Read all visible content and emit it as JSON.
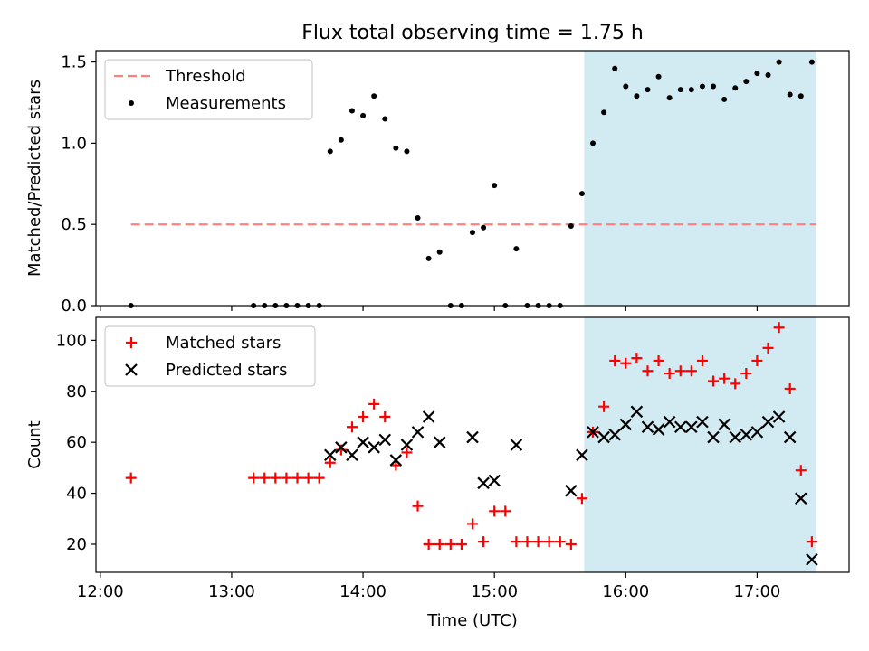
{
  "figure": {
    "title": "Flux total observing time = 1.75 h"
  },
  "chart_data": [
    {
      "type": "scatter",
      "panel": "top",
      "title": "Flux total observing time = 1.75 h",
      "xlabel": "",
      "ylabel": "Matched/Predicted stars",
      "xlim": [
        "11:58",
        "17:42"
      ],
      "ylim": [
        0,
        1.57
      ],
      "yticks": [
        0.0,
        0.5,
        1.0,
        1.5
      ],
      "ytick_labels": [
        "0.0",
        "0.5",
        "1.0",
        "1.5"
      ],
      "legend": {
        "location": "upper left",
        "entries": [
          "Threshold",
          "Measurements"
        ]
      },
      "shaded_region": {
        "x": [
          "15:41",
          "17:27"
        ],
        "color": "#add8e6"
      },
      "threshold": {
        "name": "Threshold",
        "y": 0.5,
        "x": [
          "12:14",
          "17:27"
        ],
        "color": "#ff7f7f",
        "style": "dashed"
      },
      "series": [
        {
          "name": "Measurements",
          "marker": "dot",
          "color": "#000000",
          "x": [
            "12:14",
            "13:10",
            "13:15",
            "13:20",
            "13:25",
            "13:30",
            "13:35",
            "13:40",
            "13:45",
            "13:50",
            "13:55",
            "14:00",
            "14:05",
            "14:10",
            "14:15",
            "14:20",
            "14:25",
            "14:30",
            "14:35",
            "14:40",
            "14:45",
            "14:50",
            "14:55",
            "15:00",
            "15:05",
            "15:10",
            "15:15",
            "15:20",
            "15:25",
            "15:30",
            "15:35",
            "15:40",
            "15:45",
            "15:50",
            "15:55",
            "16:00",
            "16:05",
            "16:10",
            "16:15",
            "16:20",
            "16:25",
            "16:30",
            "16:35",
            "16:40",
            "16:45",
            "16:50",
            "16:55",
            "17:00",
            "17:05",
            "17:10",
            "17:15",
            "17:20",
            "17:25"
          ],
          "y": [
            0.0,
            0.0,
            0.0,
            0.0,
            0.0,
            0.0,
            0.0,
            0.0,
            0.95,
            1.02,
            1.2,
            1.17,
            1.29,
            1.15,
            0.97,
            0.95,
            0.54,
            0.29,
            0.33,
            0.0,
            0.0,
            0.45,
            0.48,
            0.74,
            0.0,
            0.35,
            0.0,
            0.0,
            0.0,
            0.0,
            0.49,
            0.69,
            1.0,
            1.19,
            1.46,
            1.35,
            1.29,
            1.33,
            1.41,
            1.28,
            1.33,
            1.33,
            1.35,
            1.35,
            1.27,
            1.34,
            1.38,
            1.43,
            1.42,
            1.5,
            1.3,
            1.29,
            1.5
          ]
        }
      ]
    },
    {
      "type": "scatter",
      "panel": "bottom",
      "xlabel": "Time (UTC)",
      "ylabel": "Count",
      "xlim": [
        "11:58",
        "17:42"
      ],
      "ylim": [
        9,
        109
      ],
      "yticks": [
        20,
        40,
        60,
        80,
        100
      ],
      "ytick_labels": [
        "20",
        "40",
        "60",
        "80",
        "100"
      ],
      "xticks": [
        "12:00",
        "13:00",
        "14:00",
        "15:00",
        "16:00",
        "17:00"
      ],
      "xtick_labels": [
        "12:00",
        "13:00",
        "14:00",
        "15:00",
        "16:00",
        "17:00"
      ],
      "legend": {
        "location": "upper left",
        "entries": [
          "Matched stars",
          "Predicted stars"
        ]
      },
      "shaded_region": {
        "x": [
          "15:41",
          "17:27"
        ],
        "color": "#add8e6"
      },
      "series": [
        {
          "name": "Matched stars",
          "marker": "plus",
          "color": "#ff0000",
          "x": [
            "12:14",
            "13:10",
            "13:15",
            "13:20",
            "13:25",
            "13:30",
            "13:35",
            "13:40",
            "13:45",
            "13:50",
            "13:55",
            "14:00",
            "14:05",
            "14:10",
            "14:15",
            "14:20",
            "14:25",
            "14:30",
            "14:35",
            "14:40",
            "14:45",
            "14:50",
            "14:55",
            "15:00",
            "15:05",
            "15:10",
            "15:15",
            "15:20",
            "15:25",
            "15:30",
            "15:35",
            "15:40",
            "15:45",
            "15:50",
            "15:55",
            "16:00",
            "16:05",
            "16:10",
            "16:15",
            "16:20",
            "16:25",
            "16:30",
            "16:35",
            "16:40",
            "16:45",
            "16:50",
            "16:55",
            "17:00",
            "17:05",
            "17:10",
            "17:15",
            "17:20",
            "17:25"
          ],
          "y": [
            46,
            46,
            46,
            46,
            46,
            46,
            46,
            46,
            52,
            57,
            66,
            70,
            75,
            70,
            51,
            56,
            35,
            20,
            20,
            20,
            20,
            28,
            21,
            33,
            33,
            21,
            21,
            21,
            21,
            21,
            20,
            38,
            64,
            74,
            92,
            91,
            93,
            88,
            92,
            87,
            88,
            88,
            92,
            84,
            85,
            83,
            87,
            92,
            97,
            105,
            81,
            49,
            21
          ]
        },
        {
          "name": "Predicted stars",
          "marker": "x",
          "color": "#000000",
          "x": [
            "13:45",
            "13:50",
            "13:55",
            "14:00",
            "14:05",
            "14:10",
            "14:15",
            "14:20",
            "14:25",
            "14:30",
            "14:35",
            "14:50",
            "14:55",
            "15:00",
            "15:10",
            "15:35",
            "15:40",
            "15:45",
            "15:50",
            "15:55",
            "16:00",
            "16:05",
            "16:10",
            "16:15",
            "16:20",
            "16:25",
            "16:30",
            "16:35",
            "16:40",
            "16:45",
            "16:50",
            "16:55",
            "17:00",
            "17:05",
            "17:10",
            "17:15",
            "17:20",
            "17:25"
          ],
          "y": [
            55,
            58,
            55,
            60,
            58,
            61,
            53,
            59,
            64,
            70,
            60,
            62,
            44,
            45,
            59,
            41,
            55,
            64,
            62,
            63,
            67,
            72,
            66,
            65,
            68,
            66,
            66,
            68,
            62,
            67,
            62,
            63,
            64,
            68,
            70,
            62,
            38,
            14
          ]
        }
      ]
    }
  ]
}
